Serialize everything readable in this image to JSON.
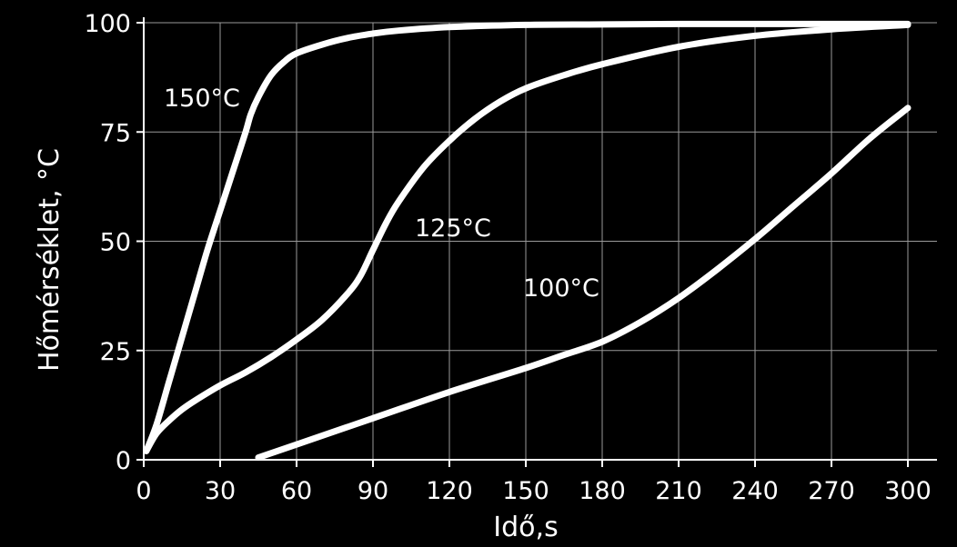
{
  "chart_data": {
    "type": "line",
    "xlabel": "Idő,s",
    "ylabel": "Hőmérséklet, °C",
    "xlim": [
      0,
      300
    ],
    "ylim": [
      0,
      100
    ],
    "xticks": [
      "0",
      "30",
      "60",
      "90",
      "120",
      "150",
      "180",
      "210",
      "240",
      "270",
      "300"
    ],
    "yticks": [
      "0",
      "25",
      "50",
      "75",
      "100"
    ],
    "grid": true,
    "colors": {
      "background": "#000000",
      "line": "#ffffff",
      "grid": "#9a9a9a"
    },
    "series": [
      {
        "name": "150°C",
        "x": [
          1,
          5,
          10,
          15,
          20,
          25,
          30,
          35,
          40,
          42,
          45,
          50,
          55,
          60,
          70,
          80,
          90,
          100,
          120,
          150,
          180,
          210,
          240,
          270,
          300
        ],
        "y": [
          2,
          8,
          18,
          28,
          38,
          48,
          57,
          66,
          75,
          79,
          83,
          88,
          91,
          93,
          95,
          96.5,
          97.5,
          98.2,
          99,
          99.5,
          99.6,
          99.7,
          99.7,
          99.7,
          99.7
        ]
      },
      {
        "name": "125°C",
        "x": [
          1,
          5,
          10,
          15,
          20,
          30,
          40,
          50,
          60,
          70,
          80,
          85,
          90,
          95,
          100,
          110,
          120,
          130,
          140,
          150,
          165,
          180,
          210,
          240,
          270,
          300
        ],
        "y": [
          2,
          6,
          9,
          11.5,
          13.5,
          17,
          20,
          23.5,
          27.5,
          32,
          38,
          42,
          48,
          54,
          59,
          67,
          73,
          78,
          82,
          85,
          88,
          90.5,
          94.5,
          97,
          98.5,
          99.5
        ]
      },
      {
        "name": "100°C",
        "x": [
          45,
          60,
          90,
          120,
          150,
          165,
          180,
          195,
          210,
          225,
          240,
          255,
          270,
          285,
          300
        ],
        "y": [
          0.5,
          3.5,
          9.5,
          15.5,
          21,
          24,
          27,
          31.5,
          37,
          43.5,
          50.5,
          58,
          65.5,
          73.5,
          80.5
        ]
      }
    ]
  }
}
